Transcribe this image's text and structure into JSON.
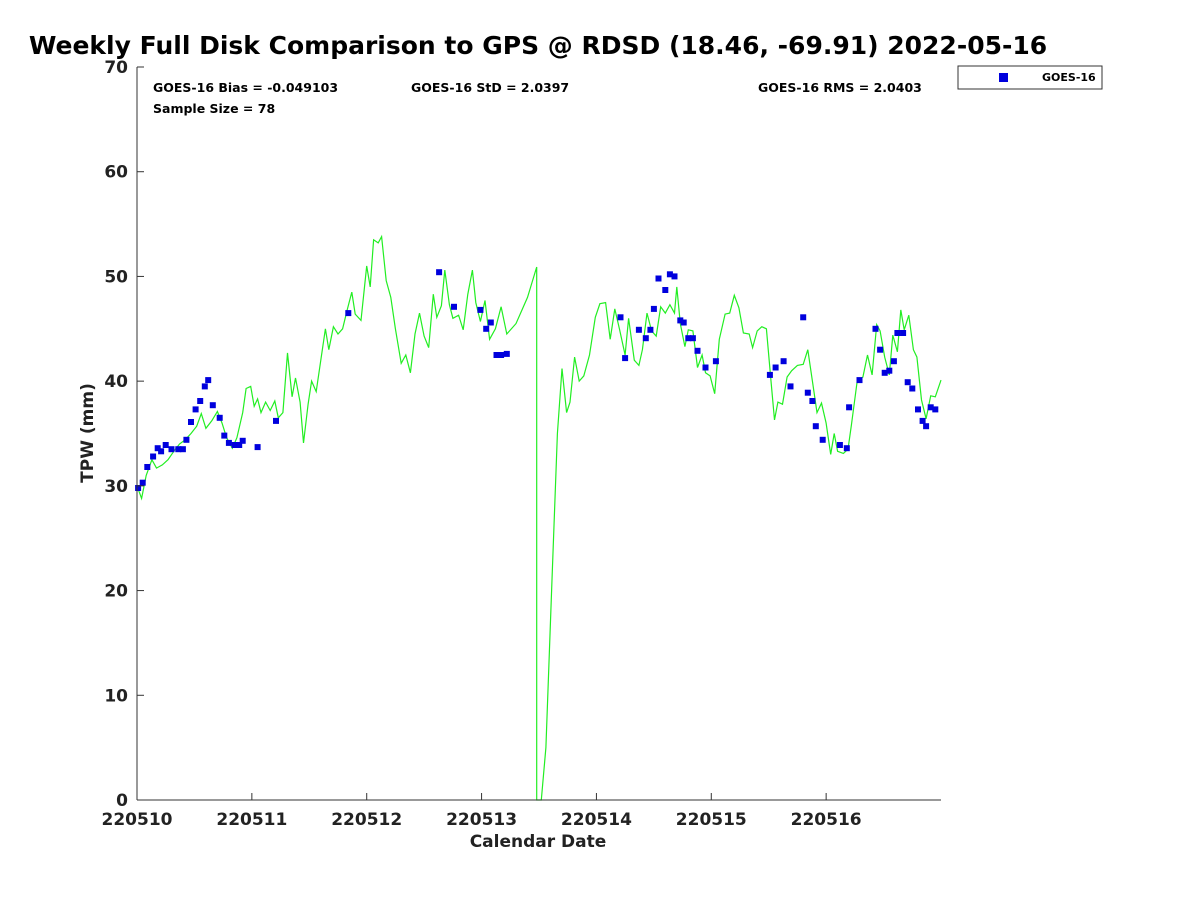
{
  "chart_data": {
    "type": "scatter",
    "title": "Weekly Full Disk Comparison to GPS @ RDSD (18.46, -69.91) 2022-05-16",
    "xlabel": "Calendar Date",
    "ylabel": "TPW (mm)",
    "xlim": [
      0,
      7
    ],
    "ylim": [
      0,
      70
    ],
    "x_ticks": [
      {
        "value": 0,
        "label": "220510"
      },
      {
        "value": 1,
        "label": "220511"
      },
      {
        "value": 2,
        "label": "220512"
      },
      {
        "value": 3,
        "label": "220513"
      },
      {
        "value": 4,
        "label": "220514"
      },
      {
        "value": 5,
        "label": "220515"
      },
      {
        "value": 6,
        "label": "220516"
      }
    ],
    "y_ticks": [
      0,
      10,
      20,
      30,
      40,
      50,
      60,
      70
    ],
    "grid": false,
    "legend": {
      "placement": "top-right",
      "entries": [
        "GOES-16"
      ]
    },
    "stats": {
      "bias": "GOES-16 Bias = -0.049103",
      "std": "GOES-16 StD = 2.0397",
      "rms": "GOES-16 RMS = 2.0403",
      "sample": "Sample Size = 78"
    },
    "series": [
      {
        "name": "GOES-16",
        "kind": "scatter",
        "color": "#0000dd",
        "points": [
          [
            0.01,
            29.8
          ],
          [
            0.05,
            30.3
          ],
          [
            0.09,
            31.8
          ],
          [
            0.14,
            32.8
          ],
          [
            0.18,
            33.6
          ],
          [
            0.21,
            33.3
          ],
          [
            0.25,
            33.9
          ],
          [
            0.3,
            33.5
          ],
          [
            0.36,
            33.5
          ],
          [
            0.4,
            33.5
          ],
          [
            0.43,
            34.4
          ],
          [
            0.47,
            36.1
          ],
          [
            0.51,
            37.3
          ],
          [
            0.55,
            38.1
          ],
          [
            0.59,
            39.5
          ],
          [
            0.62,
            40.1
          ],
          [
            0.66,
            37.7
          ],
          [
            0.72,
            36.5
          ],
          [
            0.76,
            34.8
          ],
          [
            0.8,
            34.1
          ],
          [
            0.85,
            33.9
          ],
          [
            0.89,
            33.9
          ],
          [
            0.92,
            34.3
          ],
          [
            1.05,
            33.7
          ],
          [
            1.21,
            36.2
          ],
          [
            1.84,
            46.5
          ],
          [
            2.63,
            50.4
          ],
          [
            2.76,
            47.1
          ],
          [
            2.99,
            46.8
          ],
          [
            3.04,
            45.0
          ],
          [
            3.08,
            45.6
          ],
          [
            3.13,
            42.5
          ],
          [
            3.17,
            42.5
          ],
          [
            3.22,
            42.6
          ],
          [
            4.21,
            46.1
          ],
          [
            4.25,
            42.2
          ],
          [
            4.37,
            44.9
          ],
          [
            4.43,
            44.1
          ],
          [
            4.47,
            44.9
          ],
          [
            4.5,
            46.9
          ],
          [
            4.54,
            49.8
          ],
          [
            4.6,
            48.7
          ],
          [
            4.64,
            50.2
          ],
          [
            4.68,
            50.0
          ],
          [
            4.73,
            45.8
          ],
          [
            4.76,
            45.6
          ],
          [
            4.8,
            44.1
          ],
          [
            4.84,
            44.1
          ],
          [
            4.88,
            42.9
          ],
          [
            4.95,
            41.3
          ],
          [
            5.04,
            41.9
          ],
          [
            5.51,
            40.6
          ],
          [
            5.56,
            41.3
          ],
          [
            5.63,
            41.9
          ],
          [
            5.69,
            39.5
          ],
          [
            5.8,
            46.1
          ],
          [
            5.84,
            38.9
          ],
          [
            5.88,
            38.1
          ],
          [
            5.91,
            35.7
          ],
          [
            5.97,
            34.4
          ],
          [
            6.12,
            33.9
          ],
          [
            6.18,
            33.6
          ],
          [
            6.2,
            37.5
          ],
          [
            6.29,
            40.1
          ],
          [
            6.43,
            45.0
          ],
          [
            6.47,
            43.0
          ],
          [
            6.51,
            40.8
          ],
          [
            6.55,
            41.0
          ],
          [
            6.59,
            41.9
          ],
          [
            6.62,
            44.6
          ],
          [
            6.67,
            44.6
          ],
          [
            6.71,
            39.9
          ],
          [
            6.75,
            39.3
          ],
          [
            6.8,
            37.3
          ],
          [
            6.84,
            36.2
          ],
          [
            6.87,
            35.7
          ],
          [
            6.91,
            37.5
          ],
          [
            6.95,
            37.3
          ]
        ]
      },
      {
        "name": "",
        "kind": "line",
        "color": "#22ee22",
        "points": [
          [
            0.0,
            30.0
          ],
          [
            0.04,
            28.8
          ],
          [
            0.08,
            31.0
          ],
          [
            0.13,
            32.5
          ],
          [
            0.17,
            31.7
          ],
          [
            0.22,
            32.0
          ],
          [
            0.27,
            32.5
          ],
          [
            0.32,
            33.3
          ],
          [
            0.37,
            34.0
          ],
          [
            0.42,
            34.4
          ],
          [
            0.47,
            35.0
          ],
          [
            0.52,
            35.7
          ],
          [
            0.56,
            36.9
          ],
          [
            0.6,
            35.5
          ],
          [
            0.65,
            36.2
          ],
          [
            0.7,
            37.1
          ],
          [
            0.74,
            36.0
          ],
          [
            0.78,
            34.6
          ],
          [
            0.83,
            33.6
          ],
          [
            0.87,
            34.6
          ],
          [
            0.92,
            37.0
          ],
          [
            0.95,
            39.3
          ],
          [
            0.99,
            39.5
          ],
          [
            1.02,
            37.6
          ],
          [
            1.05,
            38.3
          ],
          [
            1.08,
            37.0
          ],
          [
            1.12,
            38.0
          ],
          [
            1.16,
            37.2
          ],
          [
            1.2,
            38.1
          ],
          [
            1.23,
            36.5
          ],
          [
            1.27,
            37.0
          ],
          [
            1.31,
            42.7
          ],
          [
            1.35,
            38.5
          ],
          [
            1.38,
            40.3
          ],
          [
            1.42,
            38.0
          ],
          [
            1.45,
            34.1
          ],
          [
            1.49,
            37.8
          ],
          [
            1.52,
            40.0
          ],
          [
            1.56,
            39.0
          ],
          [
            1.6,
            42.0
          ],
          [
            1.64,
            45.0
          ],
          [
            1.67,
            43.0
          ],
          [
            1.71,
            45.2
          ],
          [
            1.75,
            44.5
          ],
          [
            1.79,
            45.0
          ],
          [
            1.83,
            46.8
          ],
          [
            1.87,
            48.5
          ],
          [
            1.9,
            46.4
          ],
          [
            1.95,
            45.8
          ],
          [
            2.0,
            51.0
          ],
          [
            2.03,
            49.0
          ],
          [
            2.06,
            53.5
          ],
          [
            2.1,
            53.2
          ],
          [
            2.13,
            53.8
          ],
          [
            2.17,
            49.6
          ],
          [
            2.21,
            48.0
          ],
          [
            2.25,
            45.0
          ],
          [
            2.3,
            41.7
          ],
          [
            2.34,
            42.5
          ],
          [
            2.38,
            40.8
          ],
          [
            2.42,
            44.5
          ],
          [
            2.46,
            46.5
          ],
          [
            2.5,
            44.3
          ],
          [
            2.54,
            43.2
          ],
          [
            2.58,
            48.3
          ],
          [
            2.61,
            46.1
          ],
          [
            2.65,
            47.2
          ],
          [
            2.68,
            50.6
          ],
          [
            2.72,
            47.3
          ],
          [
            2.75,
            46.0
          ],
          [
            2.8,
            46.3
          ],
          [
            2.84,
            44.9
          ],
          [
            2.88,
            48.3
          ],
          [
            2.92,
            50.6
          ],
          [
            2.95,
            47.5
          ],
          [
            2.99,
            45.7
          ],
          [
            3.03,
            47.7
          ],
          [
            3.07,
            44.0
          ],
          [
            3.12,
            45.0
          ],
          [
            3.17,
            47.1
          ],
          [
            3.22,
            44.5
          ],
          [
            3.3,
            45.5
          ],
          [
            3.4,
            48.0
          ],
          [
            3.48,
            50.9
          ],
          [
            3.48,
            10.0
          ],
          [
            3.48,
            0.0
          ],
          [
            3.52,
            0.0
          ],
          [
            3.56,
            5.0
          ],
          [
            3.61,
            20.0
          ],
          [
            3.66,
            35.0
          ],
          [
            3.7,
            41.2
          ],
          [
            3.74,
            37.0
          ],
          [
            3.77,
            38.0
          ],
          [
            3.81,
            42.3
          ],
          [
            3.85,
            40.0
          ],
          [
            3.89,
            40.5
          ],
          [
            3.94,
            42.5
          ],
          [
            3.99,
            46.1
          ],
          [
            4.03,
            47.4
          ],
          [
            4.08,
            47.5
          ],
          [
            4.12,
            44.0
          ],
          [
            4.16,
            46.9
          ],
          [
            4.2,
            45.0
          ],
          [
            4.25,
            42.5
          ],
          [
            4.28,
            46.0
          ],
          [
            4.33,
            42.0
          ],
          [
            4.37,
            41.5
          ],
          [
            4.4,
            43.0
          ],
          [
            4.44,
            46.5
          ],
          [
            4.48,
            44.8
          ],
          [
            4.52,
            44.3
          ],
          [
            4.56,
            47.1
          ],
          [
            4.6,
            46.5
          ],
          [
            4.64,
            47.3
          ],
          [
            4.68,
            46.5
          ],
          [
            4.7,
            49.0
          ],
          [
            4.73,
            45.5
          ],
          [
            4.77,
            43.3
          ],
          [
            4.8,
            44.9
          ],
          [
            4.84,
            44.8
          ],
          [
            4.88,
            41.3
          ],
          [
            4.92,
            42.5
          ],
          [
            4.95,
            40.8
          ],
          [
            4.99,
            40.5
          ],
          [
            5.03,
            38.8
          ],
          [
            5.07,
            44.0
          ],
          [
            5.12,
            46.4
          ],
          [
            5.16,
            46.5
          ],
          [
            5.2,
            48.2
          ],
          [
            5.24,
            47.0
          ],
          [
            5.28,
            44.6
          ],
          [
            5.33,
            44.5
          ],
          [
            5.36,
            43.2
          ],
          [
            5.4,
            44.8
          ],
          [
            5.44,
            45.2
          ],
          [
            5.48,
            45.0
          ],
          [
            5.52,
            40.0
          ],
          [
            5.55,
            36.3
          ],
          [
            5.58,
            38.0
          ],
          [
            5.62,
            37.8
          ],
          [
            5.66,
            40.4
          ],
          [
            5.7,
            41.0
          ],
          [
            5.75,
            41.5
          ],
          [
            5.8,
            41.6
          ],
          [
            5.84,
            43.0
          ],
          [
            5.88,
            40.0
          ],
          [
            5.92,
            37.0
          ],
          [
            5.96,
            37.9
          ],
          [
            6.0,
            36.0
          ],
          [
            6.04,
            33.0
          ],
          [
            6.07,
            35.0
          ],
          [
            6.1,
            33.3
          ],
          [
            6.15,
            33.1
          ],
          [
            6.19,
            33.5
          ],
          [
            6.22,
            35.8
          ],
          [
            6.27,
            40.0
          ],
          [
            6.32,
            40.4
          ],
          [
            6.36,
            42.5
          ],
          [
            6.4,
            40.6
          ],
          [
            6.44,
            45.4
          ],
          [
            6.47,
            44.8
          ],
          [
            6.51,
            42.3
          ],
          [
            6.55,
            40.6
          ],
          [
            6.58,
            44.4
          ],
          [
            6.62,
            42.8
          ],
          [
            6.65,
            46.8
          ],
          [
            6.68,
            44.9
          ],
          [
            6.72,
            46.3
          ],
          [
            6.76,
            43.0
          ],
          [
            6.79,
            42.3
          ],
          [
            6.83,
            38.2
          ],
          [
            6.87,
            36.4
          ],
          [
            6.91,
            38.6
          ],
          [
            6.95,
            38.5
          ],
          [
            7.0,
            40.1
          ]
        ]
      }
    ]
  }
}
